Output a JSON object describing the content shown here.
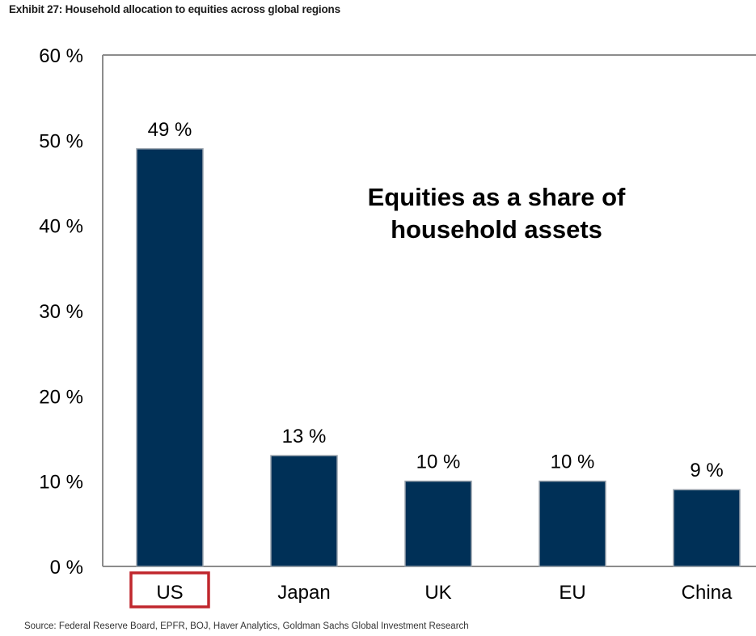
{
  "header": {
    "title": "Exhibit 27: Household allocation to equities across global regions"
  },
  "footer": {
    "source": "Source: Federal Reserve Board, EPFR, BOJ, Haver Analytics, Goldman Sachs Global Investment Research"
  },
  "chart_data": {
    "type": "bar",
    "title": "",
    "xlabel": "",
    "ylabel": "",
    "categories": [
      "US",
      "Japan",
      "UK",
      "EU",
      "China"
    ],
    "values": [
      49,
      13,
      10,
      10,
      9
    ],
    "data_labels": [
      "49 %",
      "13 %",
      "10 %",
      "10 %",
      "9 %"
    ],
    "ylim": [
      0,
      60
    ],
    "yticks": [
      0,
      10,
      20,
      30,
      40,
      50,
      60
    ],
    "ytick_labels": [
      "0 %",
      "10 %",
      "20 %",
      "30 %",
      "40 %",
      "50 %",
      "60 %"
    ],
    "annotation_lines": [
      "Equities as a share of",
      "household assets"
    ],
    "highlighted_category": "US",
    "grid": false,
    "legend": "none",
    "colors": {
      "bar": "#003057",
      "bar_edge": "#9aa3ad",
      "highlight_box": "#c0272d",
      "axis": "#8c8c8c"
    }
  }
}
